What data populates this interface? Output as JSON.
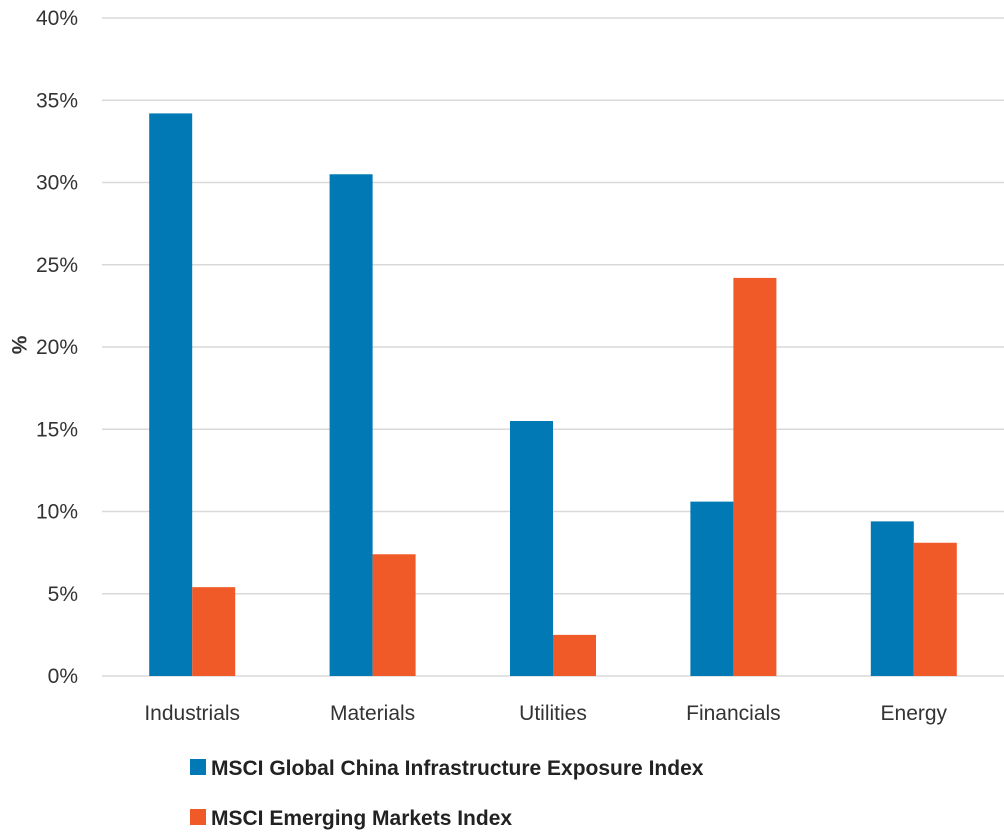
{
  "chart_data": {
    "type": "bar",
    "title": "",
    "xlabel": "",
    "ylabel": "%",
    "categories": [
      "Industrials",
      "Materials",
      "Utilities",
      "Financials",
      "Energy"
    ],
    "series": [
      {
        "name": "MSCI Global China Infrastructure Exposure Index",
        "color": "#0079b4",
        "values": [
          34.2,
          30.5,
          15.5,
          10.6,
          9.4
        ]
      },
      {
        "name": "MSCI Emerging Markets Index",
        "color": "#f05a28",
        "values": [
          5.4,
          7.4,
          2.5,
          24.2,
          8.1
        ]
      }
    ],
    "ylim": [
      0,
      40
    ],
    "yticks": [
      0,
      5,
      10,
      15,
      20,
      25,
      30,
      35,
      40
    ],
    "ytick_labels": [
      "0%",
      "5%",
      "10%",
      "15%",
      "20%",
      "25%",
      "30%",
      "35%",
      "40%"
    ],
    "grid": true,
    "gridline_color": "#d9d9d9",
    "legend": "bottom"
  }
}
